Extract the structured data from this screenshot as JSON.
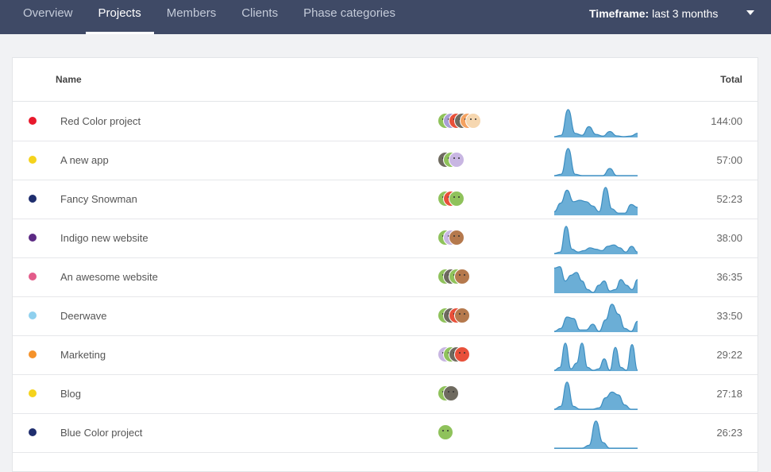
{
  "nav": {
    "tabs": [
      {
        "label": "Overview",
        "active": false
      },
      {
        "label": "Projects",
        "active": true
      },
      {
        "label": "Members",
        "active": false
      },
      {
        "label": "Clients",
        "active": false
      },
      {
        "label": "Phase categories",
        "active": false
      }
    ],
    "timeframe_label": "Timeframe:",
    "timeframe_value": "last 3 months"
  },
  "table": {
    "columns": {
      "name": "Name",
      "total": "Total"
    },
    "rows": [
      {
        "name": "Red Color project",
        "total": "144:00",
        "color": "#e8192c",
        "avatars": [
          "#8fc25b",
          "#a99ed6",
          "#e8503a",
          "#6e6a5f",
          "#f4a261",
          "#f6d7b0"
        ],
        "activity": [
          0.0,
          0.05,
          0.95,
          0.12,
          0.05,
          0.35,
          0.08,
          0.02,
          0.18,
          0.03,
          0.0,
          0.02,
          0.12
        ]
      },
      {
        "name": "A new app",
        "total": "57:00",
        "color": "#f5d31c",
        "avatars": [
          "#6e6a5f",
          "#8fc25b",
          "#c8b6e2"
        ],
        "activity": [
          0.0,
          0.05,
          0.95,
          0.05,
          0.0,
          0.0,
          0.0,
          0.0,
          0.25,
          0.0,
          0.0,
          0.0,
          0.0
        ]
      },
      {
        "name": "Fancy Snowman",
        "total": "52:23",
        "color": "#1f2e6e",
        "avatars": [
          "#8fc25b",
          "#e8503a",
          "#8fc25b"
        ],
        "activity": [
          0.1,
          0.4,
          0.85,
          0.45,
          0.5,
          0.45,
          0.3,
          0.1,
          0.95,
          0.2,
          0.05,
          0.05,
          0.35,
          0.25
        ]
      },
      {
        "name": "Indigo new website",
        "total": "38:00",
        "color": "#5c2a84",
        "avatars": [
          "#8fc25b",
          "#c8b6e2",
          "#b5794d"
        ],
        "activity": [
          0.0,
          0.05,
          0.95,
          0.15,
          0.05,
          0.1,
          0.2,
          0.15,
          0.1,
          0.25,
          0.3,
          0.2,
          0.05,
          0.25,
          0.05
        ]
      },
      {
        "name": "An awesome website",
        "total": "36:35",
        "color": "#e35c8a",
        "avatars": [
          "#8fc25b",
          "#6e6a5f",
          "#8fc25b",
          "#b5794d"
        ],
        "activity": [
          0.85,
          0.9,
          0.4,
          0.6,
          0.7,
          0.4,
          0.1,
          0.0,
          0.25,
          0.4,
          0.05,
          0.1,
          0.45,
          0.25,
          0.1,
          0.45
        ]
      },
      {
        "name": "Deerwave",
        "total": "33:50",
        "color": "#8fd0ee",
        "avatars": [
          "#8fc25b",
          "#6e6a5f",
          "#e8503a",
          "#b5794d"
        ],
        "activity": [
          0.0,
          0.1,
          0.5,
          0.45,
          0.05,
          0.05,
          0.25,
          0.0,
          0.4,
          0.95,
          0.6,
          0.1,
          0.0,
          0.35
        ]
      },
      {
        "name": "Marketing",
        "total": "29:22",
        "color": "#f5922a",
        "avatars": [
          "#c8b6e2",
          "#8fc25b",
          "#6e6a5f",
          "#e8503a"
        ],
        "activity": [
          0.0,
          0.1,
          0.95,
          0.05,
          0.25,
          0.95,
          0.1,
          0.0,
          0.05,
          0.4,
          0.0,
          0.8,
          0.1,
          0.0,
          0.9,
          0.0
        ]
      },
      {
        "name": "Blog",
        "total": "27:18",
        "color": "#f5d31c",
        "avatars": [
          "#8fc25b",
          "#6e6a5f"
        ],
        "activity": [
          0.0,
          0.1,
          0.95,
          0.1,
          0.0,
          0.0,
          0.0,
          0.05,
          0.4,
          0.6,
          0.5,
          0.15,
          0.0,
          0.0
        ]
      },
      {
        "name": "Blue Color project",
        "total": "26:23",
        "color": "#1f2e6e",
        "avatars": [
          "#8fc25b"
        ],
        "activity": [
          0.0,
          0.0,
          0.0,
          0.0,
          0.0,
          0.1,
          0.95,
          0.2,
          0.0,
          0.0,
          0.0,
          0.0,
          0.0
        ]
      }
    ]
  },
  "colors": {
    "nav_bg": "#3f4a66",
    "sparkline_fill": "#6baed6",
    "sparkline_stroke": "#3e8fc2"
  },
  "icons": {
    "timeframe_caret": "chevron-down-icon"
  }
}
